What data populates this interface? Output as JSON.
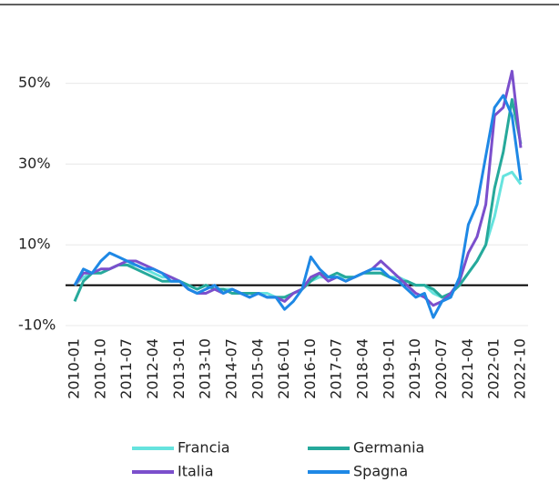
{
  "chart_data": {
    "type": "line",
    "categories": [
      "2010-01",
      null,
      null,
      "2010-10",
      null,
      null,
      "2011-07",
      null,
      null,
      "2012-04",
      null,
      null,
      "2013-01",
      null,
      null,
      "2013-10",
      null,
      null,
      "2014-07",
      null,
      null,
      "2015-04",
      null,
      null,
      "2016-01",
      null,
      null,
      "2016-10",
      null,
      null,
      "2017-07",
      null,
      null,
      "2018-04",
      null,
      null,
      "2019-01",
      null,
      null,
      "2019-10",
      null,
      null,
      "2020-07",
      null,
      null,
      "2021-04",
      null,
      null,
      "2022-01",
      null,
      null,
      "2022-10"
    ],
    "series": [
      {
        "name": "Francia",
        "color": "#66e3de",
        "values": [
          0,
          2,
          3,
          3,
          4,
          5,
          5,
          5,
          4,
          3,
          2,
          2,
          1,
          0,
          -1,
          0,
          -1,
          -1,
          -1,
          -2,
          -2,
          -2,
          -2,
          -3,
          -3,
          -2,
          -1,
          1,
          2,
          2,
          2,
          2,
          2,
          3,
          3,
          3,
          2,
          2,
          1,
          0,
          0,
          -2,
          -3,
          -2,
          0,
          3,
          6,
          10,
          17,
          27,
          28,
          25
        ]
      },
      {
        "name": "Germania",
        "color": "#26a99b",
        "values": [
          -4,
          1,
          3,
          3,
          4,
          5,
          5,
          4,
          3,
          2,
          1,
          1,
          1,
          0,
          -1,
          0,
          -1,
          -1,
          -2,
          -2,
          -2,
          -2,
          -3,
          -3,
          -3,
          -2,
          -1,
          1,
          3,
          2,
          3,
          2,
          2,
          3,
          3,
          3,
          2,
          1,
          1,
          0,
          0,
          -1,
          -3,
          -2,
          0,
          3,
          6,
          10,
          24,
          33,
          46,
          35
        ]
      },
      {
        "name": "Italia",
        "color": "#7b4fcc",
        "values": [
          0,
          3,
          3,
          4,
          4,
          5,
          6,
          6,
          5,
          4,
          3,
          2,
          1,
          -1,
          -2,
          -2,
          -1,
          -2,
          -1,
          -2,
          -3,
          -2,
          -3,
          -3,
          -4,
          -2,
          -1,
          2,
          3,
          1,
          2,
          1,
          2,
          3,
          4,
          6,
          4,
          2,
          0,
          -2,
          -3,
          -5,
          -4,
          -2,
          1,
          8,
          12,
          20,
          42,
          44,
          53,
          34
        ]
      },
      {
        "name": "Spagna",
        "color": "#1e88e5",
        "values": [
          0,
          4,
          3,
          6,
          8,
          7,
          6,
          5,
          4,
          4,
          3,
          1,
          1,
          -1,
          -2,
          -1,
          0,
          -2,
          -1,
          -2,
          -3,
          -2,
          -3,
          -3,
          -6,
          -4,
          -1,
          7,
          4,
          2,
          2,
          1,
          2,
          3,
          4,
          4,
          2,
          1,
          -1,
          -3,
          -2,
          -8,
          -4,
          -3,
          2,
          15,
          20,
          32,
          44,
          47,
          42,
          26
        ]
      }
    ],
    "ylim": [
      -10,
      57
    ],
    "yticks": [
      {
        "value": -10,
        "label": "-10%"
      },
      {
        "value": 10,
        "label": "10%"
      },
      {
        "value": 30,
        "label": "30%"
      },
      {
        "value": 50,
        "label": "50%"
      }
    ],
    "grid": true,
    "hline": 0,
    "legend": "bottom"
  }
}
